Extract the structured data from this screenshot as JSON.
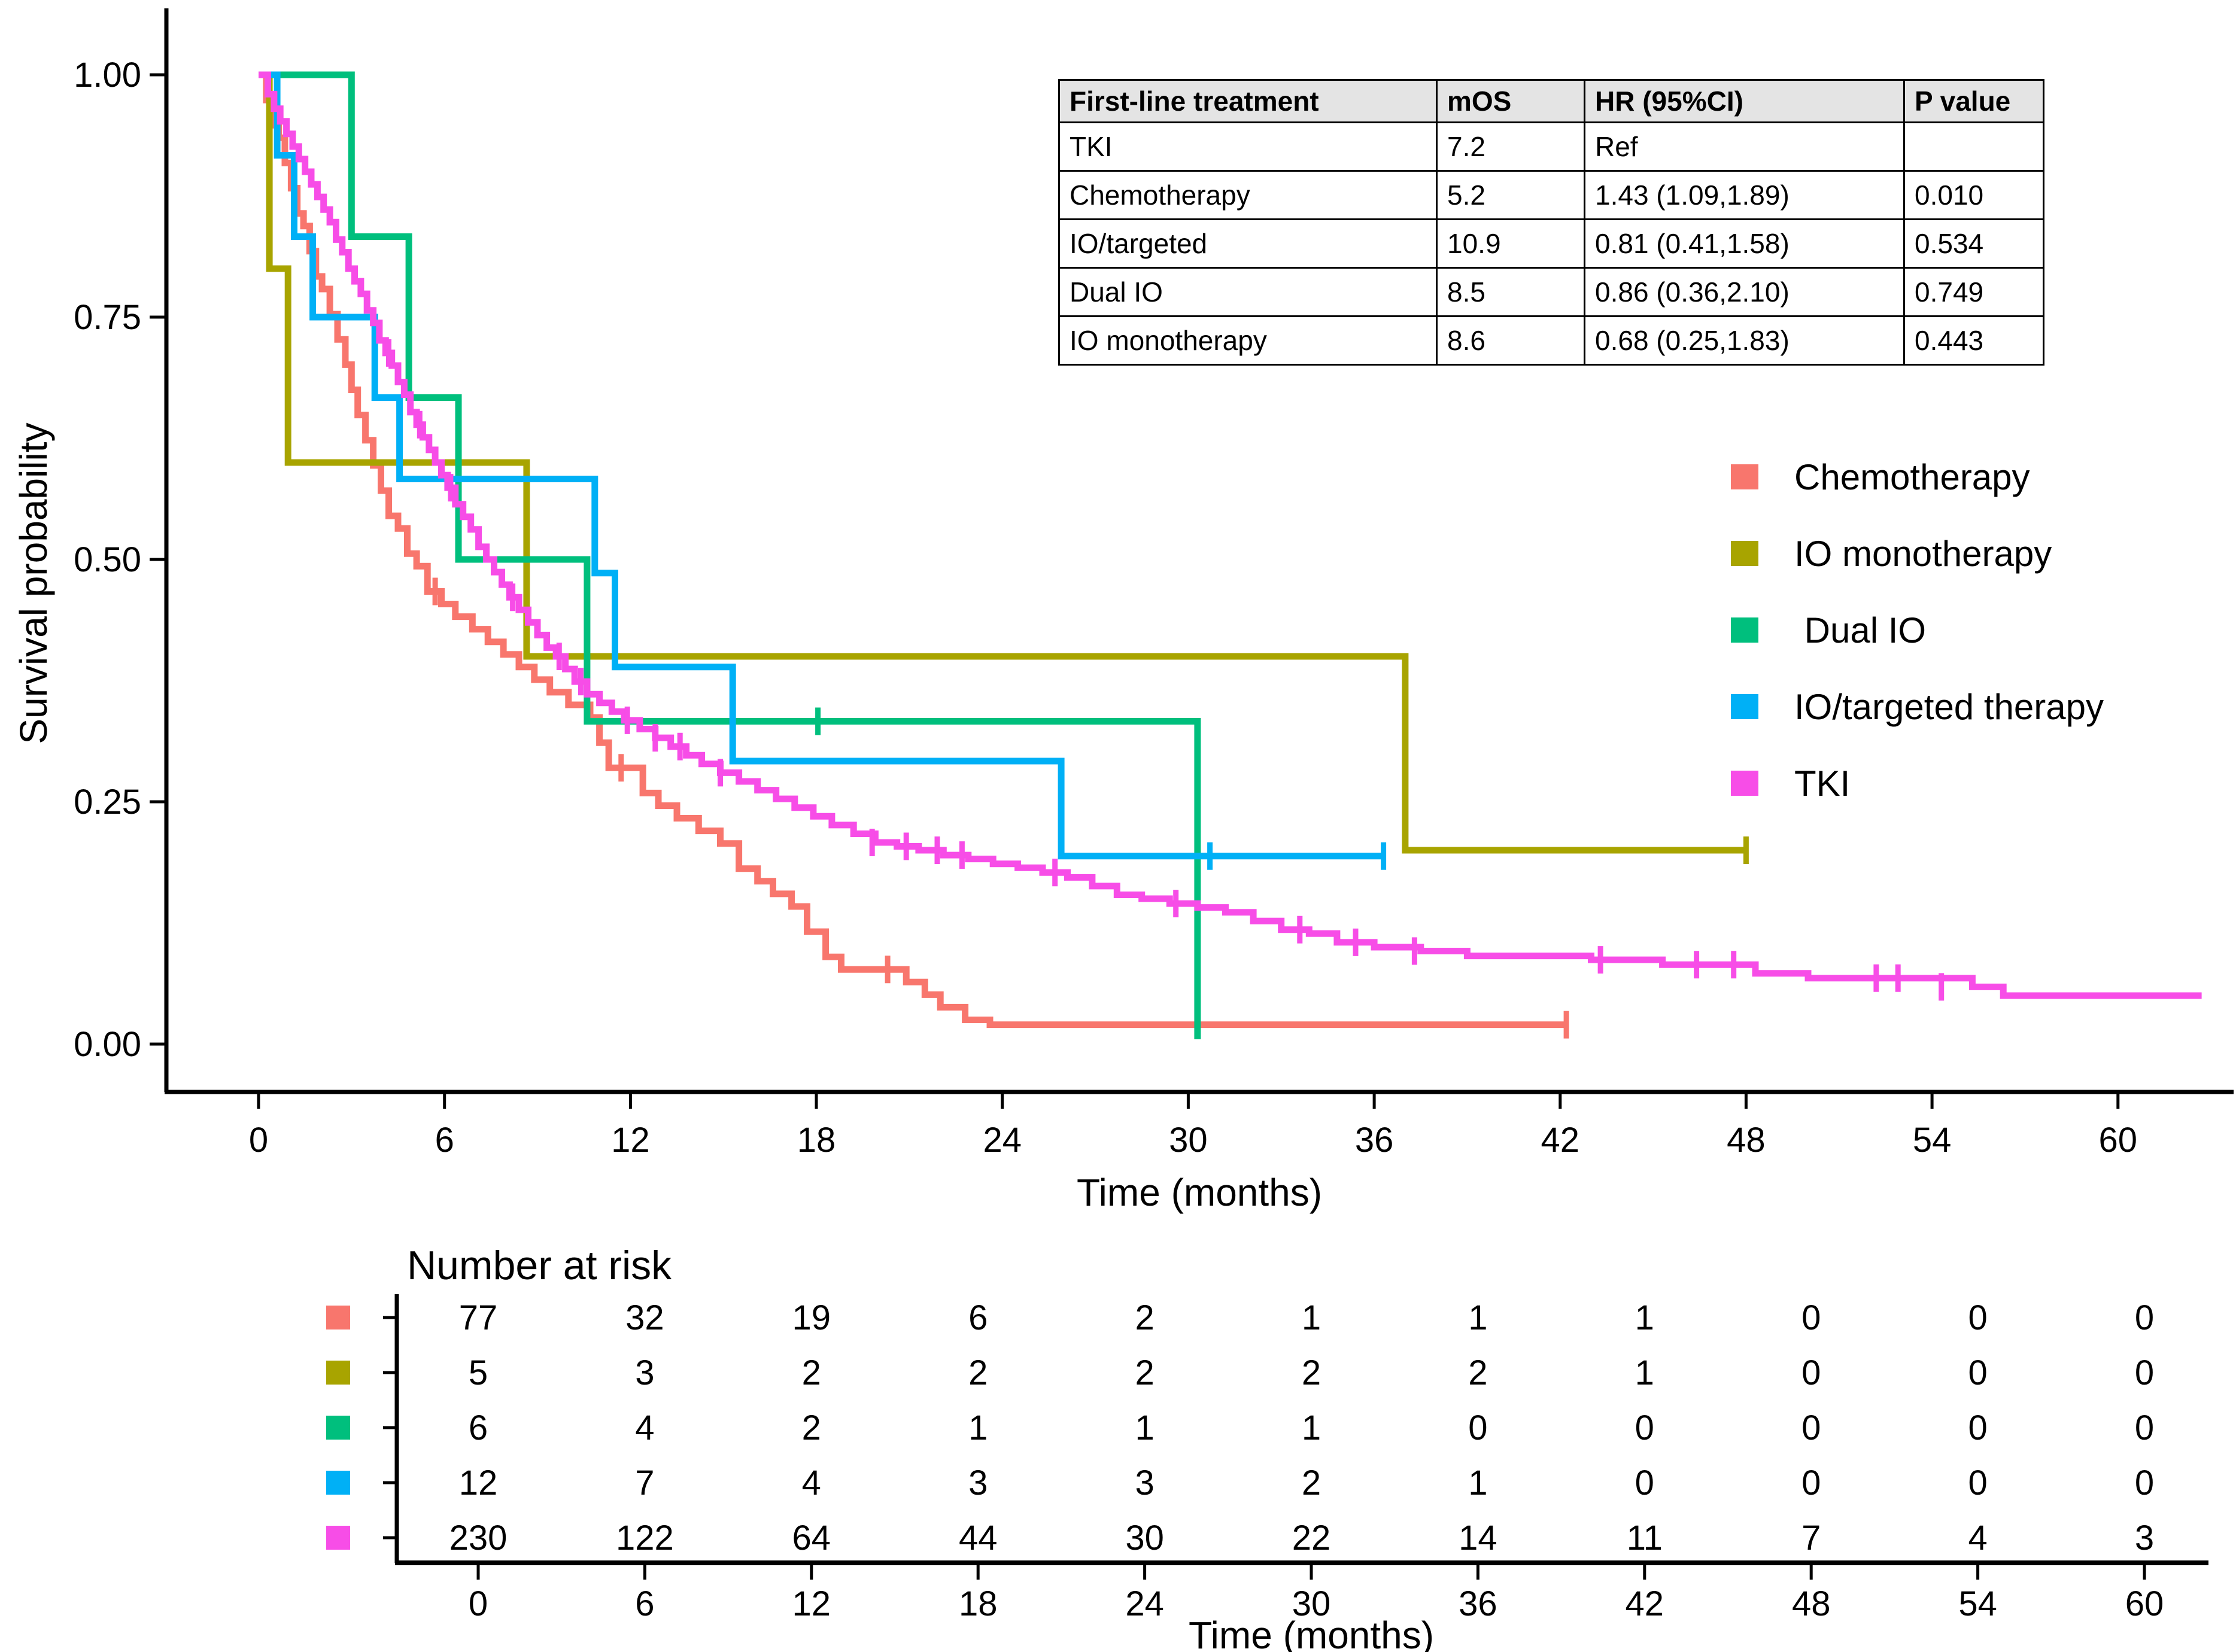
{
  "chart_data": {
    "type": "line",
    "variant": "kaplan-meier-step",
    "title": "",
    "xlabel": "Time (months)",
    "ylabel": "Survival probability",
    "xlim": [
      0,
      63.8
    ],
    "ylim": [
      0,
      1
    ],
    "grid": false,
    "legend_position": "right",
    "x_ticks": [
      0,
      6,
      12,
      18,
      24,
      30,
      36,
      42,
      48,
      54,
      60
    ],
    "y_ticks": [
      {
        "value": 1.0,
        "label": "1.00"
      },
      {
        "value": 0.75,
        "label": "0.75"
      },
      {
        "value": 0.5,
        "label": "0.50"
      },
      {
        "value": 0.25,
        "label": "0.25"
      },
      {
        "value": 0.0,
        "label": "0.00"
      }
    ],
    "series": [
      {
        "name": "Chemotherapy",
        "color": "#F8766D",
        "end_t": 42.2,
        "steps": [
          [
            0,
            1.0
          ],
          [
            0.25,
            0.974
          ],
          [
            0.45,
            0.948
          ],
          [
            0.65,
            0.935
          ],
          [
            0.85,
            0.909
          ],
          [
            1.05,
            0.883
          ],
          [
            1.25,
            0.857
          ],
          [
            1.45,
            0.844
          ],
          [
            1.65,
            0.818
          ],
          [
            1.85,
            0.792
          ],
          [
            2.05,
            0.779
          ],
          [
            2.3,
            0.753
          ],
          [
            2.55,
            0.727
          ],
          [
            2.8,
            0.701
          ],
          [
            3.0,
            0.675
          ],
          [
            3.2,
            0.649
          ],
          [
            3.45,
            0.623
          ],
          [
            3.7,
            0.597
          ],
          [
            3.95,
            0.571
          ],
          [
            4.2,
            0.545
          ],
          [
            4.5,
            0.532
          ],
          [
            4.8,
            0.506
          ],
          [
            5.1,
            0.493
          ],
          [
            5.45,
            0.467
          ],
          [
            5.9,
            0.454
          ],
          [
            6.35,
            0.441
          ],
          [
            6.9,
            0.428
          ],
          [
            7.4,
            0.415
          ],
          [
            7.9,
            0.402
          ],
          [
            8.4,
            0.389
          ],
          [
            8.9,
            0.376
          ],
          [
            9.4,
            0.363
          ],
          [
            10.0,
            0.35
          ],
          [
            10.7,
            0.337
          ],
          [
            11.0,
            0.311
          ],
          [
            11.3,
            0.285
          ],
          [
            12.4,
            0.259
          ],
          [
            12.9,
            0.246
          ],
          [
            13.5,
            0.233
          ],
          [
            14.2,
            0.22
          ],
          [
            14.9,
            0.207
          ],
          [
            15.5,
            0.181
          ],
          [
            16.1,
            0.168
          ],
          [
            16.6,
            0.155
          ],
          [
            17.2,
            0.142
          ],
          [
            17.7,
            0.116
          ],
          [
            18.3,
            0.09
          ],
          [
            18.8,
            0.077
          ],
          [
            20.9,
            0.064
          ],
          [
            21.5,
            0.051
          ],
          [
            22.0,
            0.038
          ],
          [
            22.8,
            0.025
          ],
          [
            23.6,
            0.02
          ]
        ],
        "censors": [
          [
            5.7,
            0.467
          ],
          [
            11.7,
            0.285
          ],
          [
            20.3,
            0.077
          ],
          [
            42.2,
            0.02
          ]
        ]
      },
      {
        "name": "IO monotherapy",
        "color": "#A8A400",
        "end_t": 48.0,
        "steps": [
          [
            0,
            1.0
          ],
          [
            0.35,
            0.8
          ],
          [
            0.95,
            0.6
          ],
          [
            8.65,
            0.4
          ],
          [
            37.0,
            0.2
          ]
        ],
        "censors": [
          [
            48.0,
            0.2
          ]
        ]
      },
      {
        "name": "Dual IO",
        "color": "#00BF7D",
        "end_t": 30.3,
        "steps": [
          [
            0,
            1.0
          ],
          [
            3.0,
            0.833
          ],
          [
            4.85,
            0.667
          ],
          [
            6.45,
            0.5
          ],
          [
            10.6,
            0.333
          ],
          [
            30.3,
            0.005
          ]
        ],
        "censors": [
          [
            18.05,
            0.333
          ]
        ]
      },
      {
        "name": "IO/targeted therapy",
        "color": "#00B0F6",
        "end_t": 36.3,
        "steps": [
          [
            0,
            1.0
          ],
          [
            0.6,
            0.917
          ],
          [
            1.15,
            0.833
          ],
          [
            1.75,
            0.75
          ],
          [
            3.75,
            0.667
          ],
          [
            4.55,
            0.583
          ],
          [
            10.85,
            0.486
          ],
          [
            11.5,
            0.389
          ],
          [
            15.3,
            0.292
          ],
          [
            25.9,
            0.194
          ]
        ],
        "censors": [
          [
            30.7,
            0.194
          ],
          [
            36.3,
            0.194
          ]
        ]
      },
      {
        "name": "TKI",
        "color": "#F74DE7",
        "end_t": 62.7,
        "steps": [
          [
            0,
            1.0
          ],
          [
            0.3,
            0.98
          ],
          [
            0.5,
            0.965
          ],
          [
            0.7,
            0.952
          ],
          [
            0.9,
            0.939
          ],
          [
            1.1,
            0.926
          ],
          [
            1.3,
            0.913
          ],
          [
            1.5,
            0.9
          ],
          [
            1.7,
            0.887
          ],
          [
            1.9,
            0.874
          ],
          [
            2.1,
            0.861
          ],
          [
            2.3,
            0.848
          ],
          [
            2.5,
            0.83
          ],
          [
            2.7,
            0.817
          ],
          [
            2.9,
            0.8
          ],
          [
            3.1,
            0.787
          ],
          [
            3.3,
            0.774
          ],
          [
            3.5,
            0.757
          ],
          [
            3.7,
            0.744
          ],
          [
            3.9,
            0.726
          ],
          [
            4.1,
            0.713
          ],
          [
            4.3,
            0.7
          ],
          [
            4.5,
            0.683
          ],
          [
            4.7,
            0.67
          ],
          [
            4.9,
            0.652
          ],
          [
            5.1,
            0.639
          ],
          [
            5.3,
            0.626
          ],
          [
            5.5,
            0.613
          ],
          [
            5.7,
            0.6
          ],
          [
            5.9,
            0.587
          ],
          [
            6.1,
            0.574
          ],
          [
            6.35,
            0.557
          ],
          [
            6.6,
            0.544
          ],
          [
            6.85,
            0.531
          ],
          [
            7.1,
            0.513
          ],
          [
            7.35,
            0.5
          ],
          [
            7.6,
            0.487
          ],
          [
            7.85,
            0.474
          ],
          [
            8.1,
            0.461
          ],
          [
            8.4,
            0.448
          ],
          [
            8.7,
            0.435
          ],
          [
            9.0,
            0.422
          ],
          [
            9.3,
            0.409
          ],
          [
            9.6,
            0.4
          ],
          [
            9.9,
            0.387
          ],
          [
            10.2,
            0.374
          ],
          [
            10.6,
            0.361
          ],
          [
            11.0,
            0.352
          ],
          [
            11.4,
            0.343
          ],
          [
            11.8,
            0.334
          ],
          [
            12.3,
            0.325
          ],
          [
            12.8,
            0.316
          ],
          [
            13.3,
            0.307
          ],
          [
            13.8,
            0.298
          ],
          [
            14.3,
            0.289
          ],
          [
            14.9,
            0.28
          ],
          [
            15.5,
            0.271
          ],
          [
            16.1,
            0.262
          ],
          [
            16.7,
            0.253
          ],
          [
            17.3,
            0.244
          ],
          [
            17.9,
            0.235
          ],
          [
            18.5,
            0.226
          ],
          [
            19.2,
            0.217
          ],
          [
            19.9,
            0.208
          ],
          [
            20.6,
            0.204
          ],
          [
            21.3,
            0.2
          ],
          [
            22.1,
            0.195
          ],
          [
            22.9,
            0.191
          ],
          [
            23.7,
            0.186
          ],
          [
            24.5,
            0.182
          ],
          [
            25.3,
            0.177
          ],
          [
            26.1,
            0.172
          ],
          [
            26.9,
            0.163
          ],
          [
            27.7,
            0.154
          ],
          [
            28.5,
            0.15
          ],
          [
            29.4,
            0.145
          ],
          [
            30.3,
            0.141
          ],
          [
            31.2,
            0.136
          ],
          [
            32.1,
            0.127
          ],
          [
            33.0,
            0.118
          ],
          [
            33.9,
            0.114
          ],
          [
            34.8,
            0.105
          ],
          [
            36.0,
            0.1
          ],
          [
            37.5,
            0.096
          ],
          [
            39.0,
            0.091
          ],
          [
            43.0,
            0.087
          ],
          [
            45.3,
            0.082
          ],
          [
            48.3,
            0.073
          ],
          [
            50.0,
            0.068
          ],
          [
            55.3,
            0.059
          ],
          [
            56.3,
            0.05
          ]
        ],
        "censors": [
          [
            4.2,
            0.713
          ],
          [
            5.2,
            0.639
          ],
          [
            6.2,
            0.574
          ],
          [
            8.2,
            0.461
          ],
          [
            9.7,
            0.4
          ],
          [
            10.4,
            0.374
          ],
          [
            11.9,
            0.334
          ],
          [
            12.8,
            0.316
          ],
          [
            13.6,
            0.307
          ],
          [
            14.9,
            0.28
          ],
          [
            19.8,
            0.208
          ],
          [
            20.9,
            0.204
          ],
          [
            21.9,
            0.2
          ],
          [
            22.7,
            0.195
          ],
          [
            25.7,
            0.177
          ],
          [
            29.6,
            0.145
          ],
          [
            33.6,
            0.118
          ],
          [
            35.4,
            0.105
          ],
          [
            37.3,
            0.096
          ],
          [
            43.3,
            0.087
          ],
          [
            46.4,
            0.082
          ],
          [
            47.6,
            0.082
          ],
          [
            52.2,
            0.068
          ],
          [
            52.9,
            0.068
          ],
          [
            54.3,
            0.059
          ]
        ]
      }
    ],
    "inset_table": {
      "headers": [
        "First-line treatment",
        "mOS",
        "HR (95%CI)",
        "P value"
      ],
      "rows": [
        [
          "TKI",
          "7.2",
          "Ref",
          ""
        ],
        [
          "Chemotherapy",
          "5.2",
          "1.43 (1.09,1.89)",
          "0.010"
        ],
        [
          "IO/targeted",
          "10.9",
          "0.81 (0.41,1.58)",
          "0.534"
        ],
        [
          "Dual IO",
          "8.5",
          "0.86 (0.36,2.10)",
          "0.749"
        ],
        [
          "IO monotherapy",
          "8.6",
          "0.68 (0.25,1.83)",
          "0.443"
        ]
      ]
    },
    "risk_table": {
      "title": "Number at risk",
      "xlabel": "Time (months)",
      "times": [
        0,
        6,
        12,
        18,
        24,
        30,
        36,
        42,
        48,
        54,
        60
      ],
      "rows": [
        {
          "group": "Chemotherapy",
          "color": "#F8766D",
          "counts": [
            77,
            32,
            19,
            6,
            2,
            1,
            1,
            1,
            0,
            0,
            0
          ]
        },
        {
          "group": "IO monotherapy",
          "color": "#A8A400",
          "counts": [
            5,
            3,
            2,
            2,
            2,
            2,
            2,
            1,
            0,
            0,
            0
          ]
        },
        {
          "group": "Dual IO",
          "color": "#00BF7D",
          "counts": [
            6,
            4,
            2,
            1,
            1,
            1,
            0,
            0,
            0,
            0,
            0
          ]
        },
        {
          "group": "IO/targeted therapy",
          "color": "#00B0F6",
          "counts": [
            12,
            7,
            4,
            3,
            3,
            2,
            1,
            0,
            0,
            0,
            0
          ]
        },
        {
          "group": "TKI",
          "color": "#F74DE7",
          "counts": [
            230,
            122,
            64,
            44,
            30,
            22,
            14,
            11,
            7,
            4,
            3
          ]
        }
      ]
    }
  },
  "legend": {
    "items": [
      {
        "label": "Chemotherapy",
        "color": "#F8766D"
      },
      {
        "label": "IO monotherapy",
        "color": "#A8A400"
      },
      {
        "label": " Dual IO",
        "color": "#00BF7D"
      },
      {
        "label": "IO/targeted therapy",
        "color": "#00B0F6"
      },
      {
        "label": "TKI",
        "color": "#F74DE7"
      }
    ]
  }
}
